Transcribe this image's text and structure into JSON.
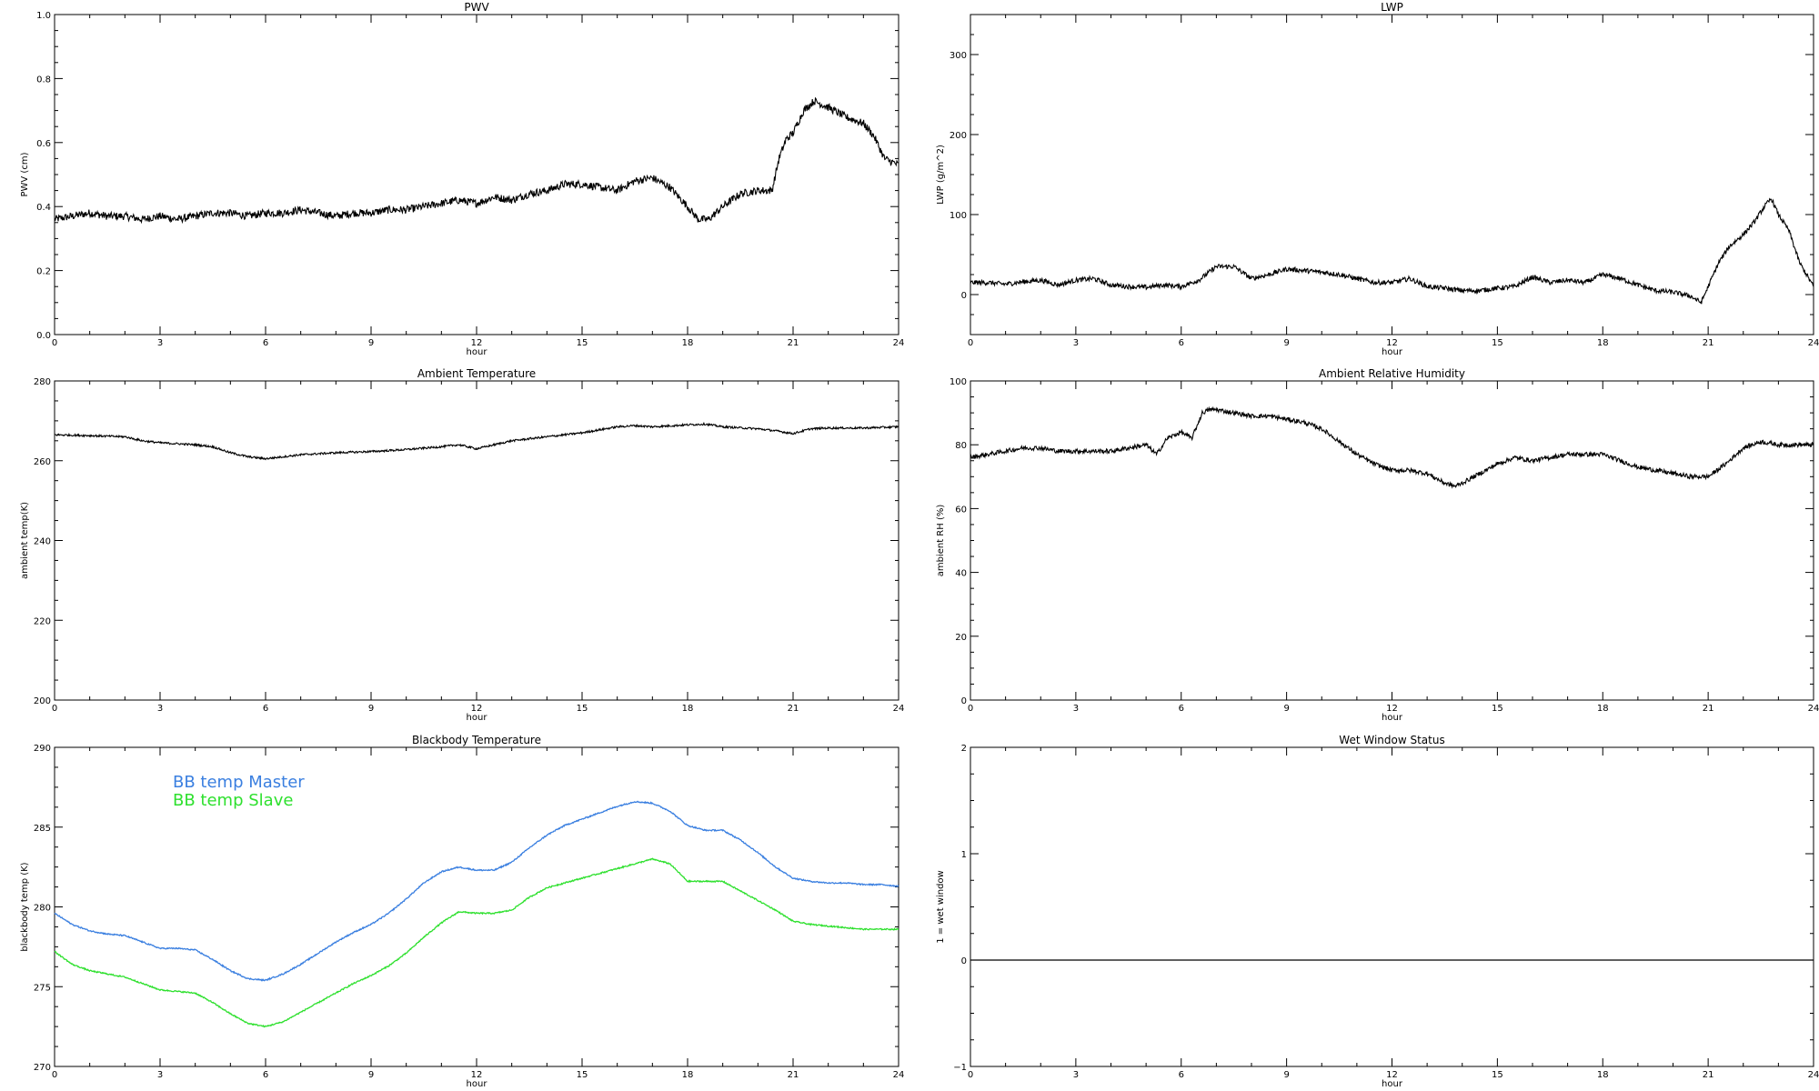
{
  "figure": {
    "x_label": "hour",
    "x_ticks": [
      "0",
      "3",
      "6",
      "9",
      "12",
      "15",
      "18",
      "21",
      "24"
    ]
  },
  "chart_data": [
    {
      "id": "pwv",
      "type": "line",
      "title": "PWV",
      "xlabel": "hour",
      "ylabel": "PWV (cm)",
      "xlim": [
        0,
        24
      ],
      "ylim": [
        0,
        1.0
      ],
      "yticks": [
        "0.0",
        "0.2",
        "0.4",
        "0.6",
        "0.8",
        "1.0"
      ],
      "ytick_values": [
        0,
        0.2,
        0.4,
        0.6,
        0.8,
        1.0
      ],
      "series": [
        {
          "color": "#000000",
          "noise": 0.012,
          "x": [
            0,
            0.5,
            1,
            1.5,
            2,
            2.5,
            3,
            3.5,
            4,
            4.5,
            5,
            5.5,
            6,
            6.5,
            7,
            7.5,
            8,
            8.5,
            9,
            9.5,
            10,
            10.5,
            11,
            11.5,
            12,
            12.5,
            13,
            13.5,
            14,
            14.5,
            15,
            15.5,
            16,
            16.5,
            17,
            17.5,
            18,
            18.3,
            18.6,
            19,
            19.5,
            20,
            20.4,
            20.6,
            20.8,
            21,
            21.3,
            21.6,
            22,
            22.5,
            23,
            23.3,
            23.6,
            24
          ],
          "y": [
            0.36,
            0.37,
            0.38,
            0.37,
            0.37,
            0.36,
            0.37,
            0.36,
            0.37,
            0.38,
            0.38,
            0.37,
            0.38,
            0.38,
            0.39,
            0.38,
            0.37,
            0.38,
            0.38,
            0.39,
            0.39,
            0.4,
            0.41,
            0.42,
            0.41,
            0.43,
            0.42,
            0.44,
            0.45,
            0.47,
            0.47,
            0.46,
            0.45,
            0.48,
            0.49,
            0.46,
            0.4,
            0.36,
            0.36,
            0.4,
            0.44,
            0.45,
            0.45,
            0.55,
            0.61,
            0.63,
            0.7,
            0.73,
            0.71,
            0.68,
            0.66,
            0.62,
            0.55,
            0.53
          ]
        }
      ]
    },
    {
      "id": "lwp",
      "type": "line",
      "title": "LWP",
      "xlabel": "hour",
      "ylabel": "LWP (g/m^2)",
      "xlim": [
        0,
        24
      ],
      "ylim": [
        -50,
        350
      ],
      "yticks": [
        "0",
        "100",
        "200",
        "300"
      ],
      "ytick_values": [
        0,
        100,
        200,
        300
      ],
      "series": [
        {
          "color": "#000000",
          "noise": 3,
          "x": [
            0,
            0.5,
            1,
            1.5,
            2,
            2.5,
            3,
            3.5,
            4,
            4.5,
            5,
            5.5,
            6,
            6.5,
            7,
            7.5,
            8,
            8.5,
            9,
            9.5,
            10,
            10.5,
            11,
            11.5,
            12,
            12.5,
            13,
            13.5,
            14,
            14.5,
            15,
            15.5,
            16,
            16.5,
            17,
            17.5,
            18,
            18.5,
            19,
            19.5,
            20,
            20.5,
            20.8,
            21,
            21.3,
            21.6,
            22,
            22.3,
            22.6,
            22.8,
            23,
            23.3,
            23.6,
            24
          ],
          "y": [
            15,
            15,
            13,
            16,
            18,
            12,
            18,
            20,
            12,
            10,
            9,
            12,
            10,
            18,
            35,
            35,
            20,
            25,
            32,
            30,
            28,
            25,
            20,
            15,
            15,
            20,
            10,
            8,
            5,
            5,
            8,
            10,
            22,
            15,
            18,
            15,
            25,
            20,
            12,
            5,
            3,
            -2,
            -10,
            10,
            40,
            60,
            75,
            90,
            110,
            120,
            100,
            80,
            40,
            10
          ]
        }
      ]
    },
    {
      "id": "ambient-temp",
      "type": "line",
      "title": "Ambient Temperature",
      "xlabel": "hour",
      "ylabel": "ambient temp(K)",
      "xlim": [
        0,
        24
      ],
      "ylim": [
        200,
        280
      ],
      "yticks": [
        "200",
        "220",
        "240",
        "260",
        "280"
      ],
      "ytick_values": [
        200,
        220,
        240,
        260,
        280
      ],
      "series": [
        {
          "color": "#000000",
          "noise": 0.25,
          "x": [
            0,
            1,
            2,
            2.5,
            3,
            4,
            4.5,
            5,
            5.5,
            6,
            6.5,
            7,
            8,
            9,
            10,
            11,
            11.5,
            12,
            12.5,
            13,
            14,
            15,
            16,
            16.5,
            17,
            18,
            18.5,
            19,
            20,
            20.5,
            21,
            21.5,
            22,
            23,
            24
          ],
          "y": [
            266.5,
            266.3,
            266,
            265,
            264.5,
            264,
            263.5,
            262,
            261,
            260.5,
            261,
            261.5,
            262,
            262.3,
            262.8,
            263.5,
            264,
            263,
            264,
            265,
            266,
            267,
            268.5,
            268.8,
            268.5,
            269,
            269.2,
            268.5,
            268,
            267.5,
            266.8,
            268,
            268.2,
            268.2,
            268.5
          ]
        }
      ]
    },
    {
      "id": "ambient-rh",
      "type": "line",
      "title": "Ambient Relative Humidity",
      "xlabel": "hour",
      "ylabel": "ambient RH (%)",
      "xlim": [
        0,
        24
      ],
      "ylim": [
        0,
        100
      ],
      "yticks": [
        "0",
        "20",
        "40",
        "60",
        "80",
        "100"
      ],
      "ytick_values": [
        0,
        20,
        40,
        60,
        80,
        100
      ],
      "series": [
        {
          "color": "#000000",
          "noise": 0.7,
          "x": [
            0,
            0.5,
            1,
            1.5,
            2,
            2.5,
            3,
            3.5,
            4,
            4.5,
            5,
            5.3,
            5.6,
            6,
            6.3,
            6.6,
            6.8,
            7,
            7.5,
            8,
            8.5,
            9,
            9.5,
            10,
            10.5,
            11,
            11.5,
            12,
            12.5,
            13,
            13.5,
            13.8,
            14,
            14.5,
            15,
            15.5,
            16,
            16.5,
            17,
            17.5,
            18,
            18.5,
            19,
            19.5,
            20,
            20.5,
            21,
            21.5,
            22,
            22.5,
            23,
            23.5,
            24
          ],
          "y": [
            76,
            77,
            78,
            79,
            79,
            78,
            78,
            78,
            78,
            79,
            80,
            77,
            82,
            84,
            82,
            90,
            91,
            91,
            90,
            89,
            89,
            88,
            87,
            85,
            81,
            77,
            74,
            72,
            72,
            71,
            68,
            67,
            68,
            71,
            74,
            76,
            75,
            76,
            77,
            77,
            77,
            75,
            73,
            72,
            71,
            70,
            70,
            74,
            79,
            81,
            80,
            80,
            80
          ]
        }
      ]
    },
    {
      "id": "bb-temp",
      "type": "line",
      "title": "Blackbody Temperature",
      "xlabel": "hour",
      "ylabel": "blackbody temp (K)",
      "xlim": [
        0,
        24
      ],
      "ylim": [
        270,
        290
      ],
      "yticks": [
        "270",
        "275",
        "280",
        "285",
        "290"
      ],
      "ytick_values": [
        270,
        275,
        280,
        285,
        290
      ],
      "legend": {
        "placement": "top-left"
      },
      "series": [
        {
          "name": "BB temp Master",
          "color": "#3a7fe0",
          "noise": 0.04,
          "x": [
            0,
            0.5,
            1,
            1.5,
            2,
            2.5,
            3,
            3.5,
            4,
            4.5,
            5,
            5.5,
            6,
            6.5,
            7,
            7.5,
            8,
            8.5,
            9,
            9.5,
            10,
            10.5,
            11,
            11.5,
            12,
            12.5,
            13,
            13.5,
            14,
            14.5,
            15,
            15.5,
            16,
            16.5,
            17,
            17.5,
            18,
            18.5,
            19,
            19.5,
            20,
            20.5,
            21,
            21.5,
            22,
            22.5,
            23,
            23.5,
            24
          ],
          "y": [
            279.6,
            278.9,
            278.5,
            278.3,
            278.2,
            277.8,
            277.4,
            277.4,
            277.3,
            276.7,
            276.0,
            275.5,
            275.4,
            275.8,
            276.4,
            277.1,
            277.8,
            278.4,
            278.9,
            279.6,
            280.5,
            281.5,
            282.2,
            282.5,
            282.3,
            282.3,
            282.8,
            283.7,
            284.5,
            285.1,
            285.5,
            285.9,
            286.3,
            286.6,
            286.5,
            286.0,
            285.1,
            284.8,
            284.8,
            284.2,
            283.4,
            282.5,
            281.8,
            281.6,
            281.5,
            281.5,
            281.4,
            281.4,
            281.3
          ]
        },
        {
          "name": "BB temp Slave",
          "color": "#2ee02e",
          "noise": 0.04,
          "x": [
            0,
            0.5,
            1,
            1.5,
            2,
            2.5,
            3,
            3.5,
            4,
            4.5,
            5,
            5.5,
            6,
            6.5,
            7,
            7.5,
            8,
            8.5,
            9,
            9.5,
            10,
            10.5,
            11,
            11.5,
            12,
            12.5,
            13,
            13.5,
            14,
            14.5,
            15,
            15.5,
            16,
            16.5,
            17,
            17.5,
            18,
            18.5,
            19,
            19.5,
            20,
            20.5,
            21,
            21.5,
            22,
            22.5,
            23,
            23.5,
            24
          ],
          "y": [
            277.2,
            276.4,
            276.0,
            275.8,
            275.6,
            275.2,
            274.8,
            274.7,
            274.6,
            274.0,
            273.3,
            272.7,
            272.5,
            272.8,
            273.4,
            274.0,
            274.6,
            275.2,
            275.7,
            276.3,
            277.1,
            278.1,
            279.0,
            279.7,
            279.6,
            279.6,
            279.8,
            280.6,
            281.2,
            281.5,
            281.8,
            282.1,
            282.4,
            282.7,
            283.0,
            282.7,
            281.6,
            281.6,
            281.6,
            281.0,
            280.4,
            279.8,
            279.1,
            278.9,
            278.8,
            278.7,
            278.6,
            278.6,
            278.6
          ]
        }
      ]
    },
    {
      "id": "wet-window",
      "type": "line",
      "title": "Wet Window Status",
      "xlabel": "hour",
      "ylabel": "1 = wet window",
      "xlim": [
        0,
        24
      ],
      "ylim": [
        -1,
        2
      ],
      "yticks": [
        "−1",
        "0",
        "1",
        "2"
      ],
      "ytick_values": [
        -1,
        0,
        1,
        2
      ],
      "series": [
        {
          "color": "#000000",
          "noise": 0,
          "x": [
            0,
            24
          ],
          "y": [
            0,
            0
          ]
        }
      ]
    }
  ]
}
